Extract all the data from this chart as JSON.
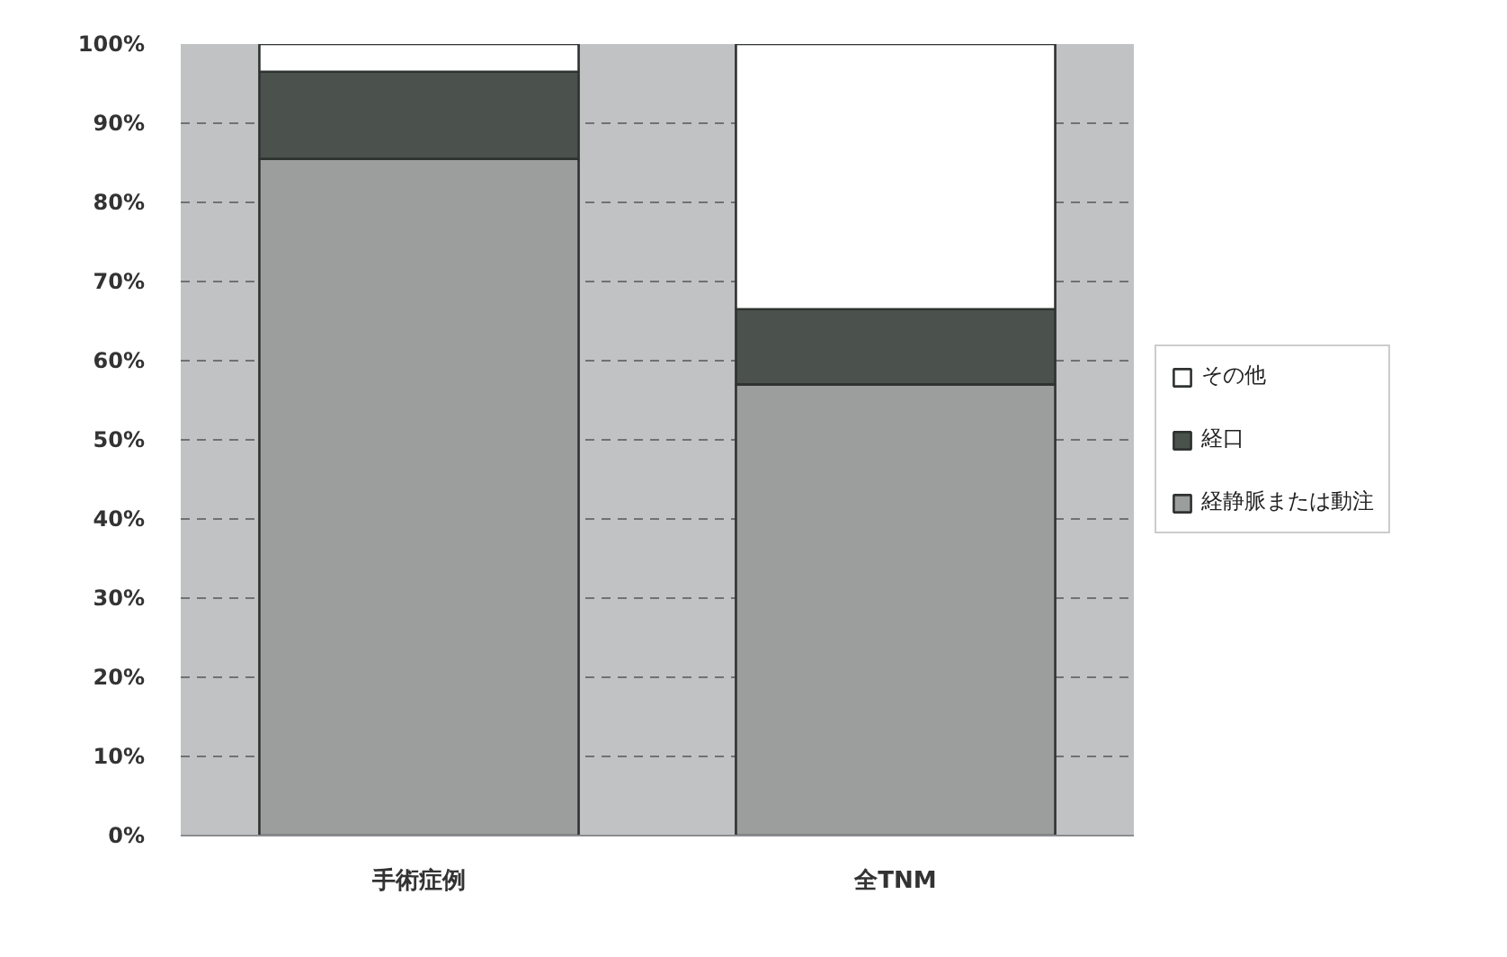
{
  "chart_data": {
    "type": "bar",
    "stacked": true,
    "categories": [
      "手術症例",
      "全TNM"
    ],
    "series": [
      {
        "name": "経静脈または動注",
        "color": "#9c9e9e",
        "values": [
          85.5,
          57
        ]
      },
      {
        "name": "経口",
        "color": "#4b524d",
        "values": [
          11,
          9.5
        ]
      },
      {
        "name": "その他",
        "color": "#ffffff",
        "values": [
          3.5,
          33.5
        ]
      }
    ],
    "ylim": [
      0,
      100
    ],
    "yticks": [
      {
        "value": 0,
        "label": "0%"
      },
      {
        "value": 10,
        "label": "10%"
      },
      {
        "value": 20,
        "label": "20%"
      },
      {
        "value": 30,
        "label": "30%"
      },
      {
        "value": 40,
        "label": "40%"
      },
      {
        "value": 50,
        "label": "50%"
      },
      {
        "value": 60,
        "label": "60%"
      },
      {
        "value": 70,
        "label": "70%"
      },
      {
        "value": 80,
        "label": "80%"
      },
      {
        "value": 90,
        "label": "90%"
      },
      {
        "value": 100,
        "label": "100%"
      }
    ],
    "grid": "y",
    "legend": "right"
  }
}
